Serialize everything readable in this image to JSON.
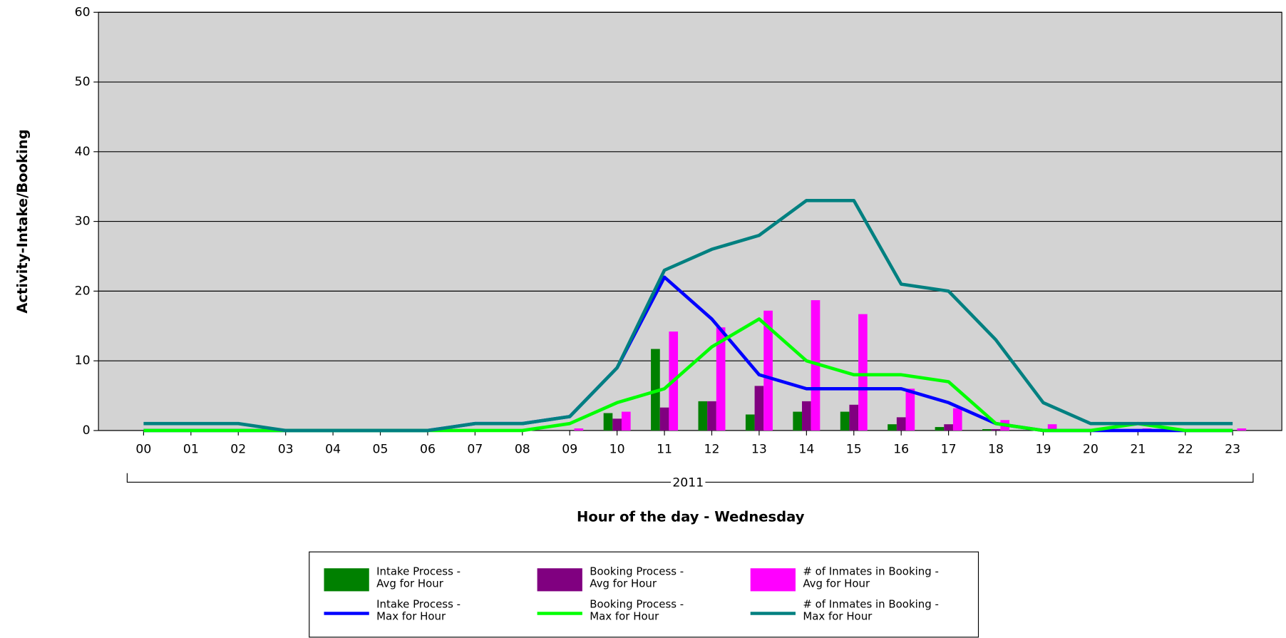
{
  "chart_data": {
    "type": "bar_line",
    "y_axis_label": "Activity-Intake/Booking",
    "x_axis_label": "Hour of the day - Wednesday",
    "x_group_label": "2011",
    "categories": [
      "00",
      "01",
      "02",
      "03",
      "04",
      "05",
      "06",
      "07",
      "08",
      "09",
      "10",
      "11",
      "12",
      "13",
      "14",
      "15",
      "16",
      "17",
      "18",
      "19",
      "20",
      "21",
      "22",
      "23"
    ],
    "ylim": [
      0,
      60
    ],
    "yticks": [
      0,
      10,
      20,
      30,
      40,
      50,
      60
    ],
    "grid": true,
    "legend": "bottom",
    "series": [
      {
        "name": "Intake Process -\nAvg for Hour",
        "kind": "bar",
        "color": "#008000",
        "values": [
          0,
          0,
          0,
          0,
          0,
          0,
          0,
          0,
          0,
          0,
          2.5,
          11.7,
          4.2,
          2.3,
          2.7,
          2.7,
          0.9,
          0.5,
          0.2,
          0,
          0,
          0,
          0,
          0
        ]
      },
      {
        "name": "Booking Process -\nAvg for Hour",
        "kind": "bar",
        "color": "#800080",
        "values": [
          0,
          0,
          0,
          0,
          0,
          0,
          0,
          0,
          0,
          0,
          1.7,
          3.3,
          4.2,
          6.4,
          4.2,
          3.7,
          1.9,
          0.9,
          0.2,
          0,
          0,
          0,
          0,
          0
        ]
      },
      {
        "name": "# of Inmates in Booking -\nAvg for Hour",
        "kind": "bar",
        "color": "#ff00ff",
        "values": [
          0,
          0,
          0,
          0,
          0,
          0,
          0,
          0.2,
          0,
          0.3,
          2.7,
          14.2,
          14.8,
          17.2,
          18.7,
          16.7,
          6,
          3.2,
          1.5,
          0.9,
          0,
          0.3,
          0,
          0.3
        ]
      },
      {
        "name": "Intake Process -\nMax for Hour",
        "kind": "line",
        "color": "#0000ff",
        "values": [
          0,
          0,
          0,
          0,
          0,
          0,
          0,
          1,
          1,
          2,
          9,
          22,
          16,
          8,
          6,
          6,
          6,
          4,
          1,
          0,
          0,
          0,
          0,
          0
        ]
      },
      {
        "name": "Booking Process -\nMax for Hour",
        "kind": "line",
        "color": "#00ff00",
        "values": [
          0,
          0,
          0,
          0,
          0,
          0,
          0,
          0,
          0,
          1,
          4,
          6,
          12,
          16,
          10,
          8,
          8,
          7,
          1,
          0,
          0,
          1,
          0,
          0
        ]
      },
      {
        "name": "# of Inmates in Booking -\nMax for Hour",
        "kind": "line",
        "color": "#008080",
        "values": [
          1,
          1,
          1,
          0,
          0,
          0,
          0,
          1,
          1,
          2,
          9,
          23,
          26,
          28,
          33,
          33,
          21,
          20,
          13,
          4,
          1,
          1,
          1,
          1
        ]
      }
    ]
  }
}
